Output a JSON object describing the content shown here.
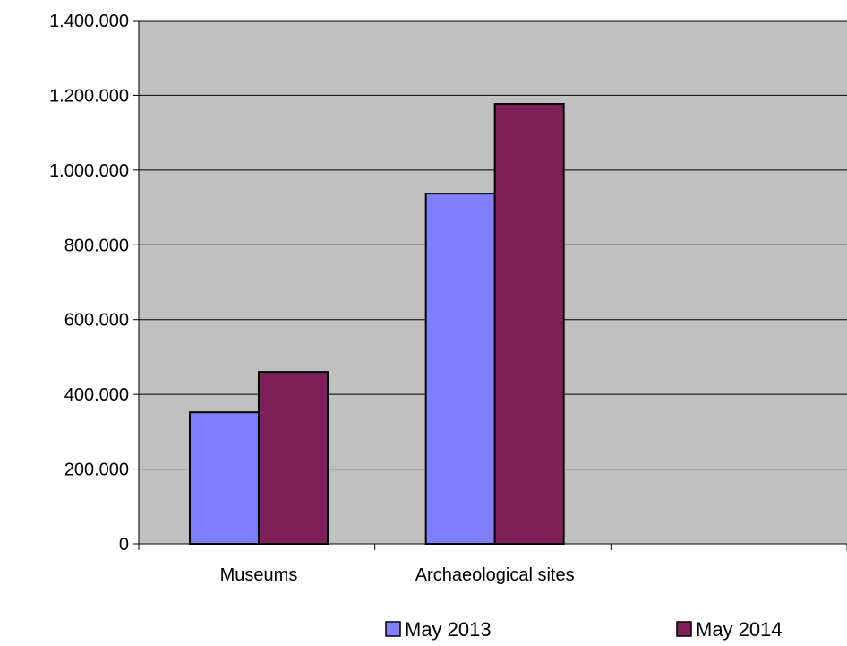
{
  "chart_data": {
    "type": "bar",
    "title": "",
    "xlabel": "",
    "ylabel": "",
    "categories": [
      "Museums",
      "Archaeological sites",
      ""
    ],
    "series": [
      {
        "name": "May 2013",
        "values": [
          352000,
          937000,
          null
        ],
        "color": "#8080ff"
      },
      {
        "name": "May 2014",
        "values": [
          460000,
          1177000,
          null
        ],
        "color": "#7f1f5b"
      }
    ],
    "ylim": [
      0,
      1400000
    ],
    "yticks": [
      0,
      200000,
      400000,
      600000,
      800000,
      1000000,
      1200000,
      1400000
    ],
    "ytick_labels": [
      "0",
      "200.000",
      "400.000",
      "600.000",
      "800.000",
      "1.000.000",
      "1.200.000",
      "1.400.000"
    ],
    "grid": true,
    "legend_position": "bottom",
    "plot_background": "#c0c0c0"
  }
}
